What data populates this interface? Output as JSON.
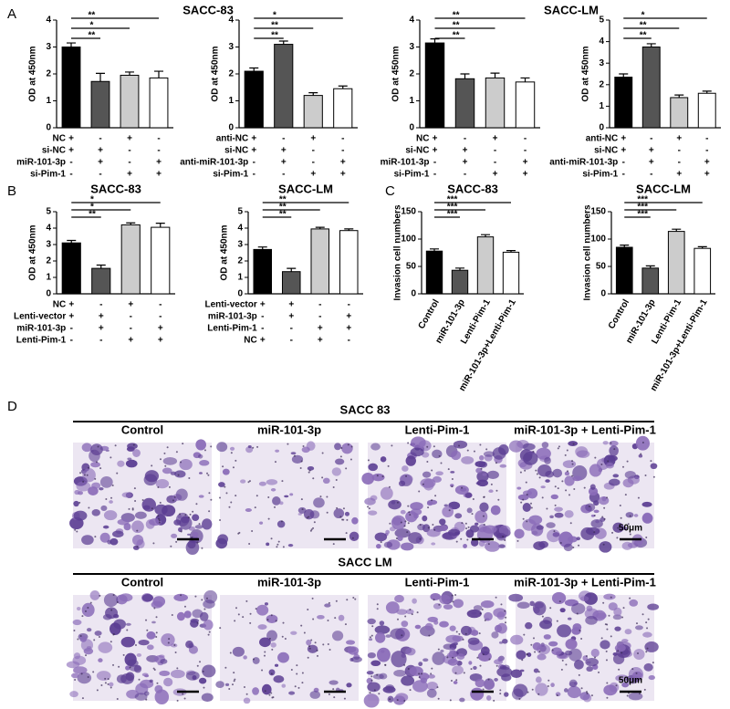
{
  "panel_labels": [
    "A",
    "B",
    "C",
    "D"
  ],
  "chart_data": [
    {
      "type": "bar",
      "title": "SACC-83",
      "ylabel": "OD at 450nm",
      "categories": [
        null,
        null,
        null,
        null
      ],
      "values": [
        3.0,
        1.72,
        1.95,
        1.85
      ],
      "errors": [
        0.15,
        0.3,
        0.12,
        0.25
      ],
      "colors": [
        "#000000",
        "#555555",
        "#cccccc",
        "#ffffff"
      ],
      "ylim": [
        0,
        4
      ],
      "yticks": [
        0,
        1,
        2,
        3,
        4
      ],
      "conditions": [
        {
          "label": "NC",
          "marks": [
            "+",
            "-",
            "+",
            "-"
          ]
        },
        {
          "label": "si-NC",
          "marks": [
            "+",
            "+",
            "-",
            "-"
          ]
        },
        {
          "label": "miR-101-3p",
          "marks": [
            "-",
            "+",
            "-",
            "+"
          ]
        },
        {
          "label": "si-Pim-1",
          "marks": [
            "-",
            "-",
            "+",
            "+"
          ]
        }
      ],
      "significance": [
        {
          "pair": [
            0,
            1
          ],
          "label": "**"
        },
        {
          "pair": [
            0,
            2
          ],
          "label": "*"
        },
        {
          "pair": [
            0,
            3
          ],
          "label": "**"
        }
      ]
    },
    {
      "type": "bar",
      "ylabel": "OD at 450nm",
      "categories": [
        null,
        null,
        null,
        null
      ],
      "values": [
        2.1,
        3.1,
        1.2,
        1.45
      ],
      "errors": [
        0.12,
        0.12,
        0.1,
        0.1
      ],
      "colors": [
        "#000000",
        "#555555",
        "#cccccc",
        "#ffffff"
      ],
      "ylim": [
        0,
        4
      ],
      "yticks": [
        0,
        1,
        2,
        3,
        4
      ],
      "conditions": [
        {
          "label": "anti-NC",
          "marks": [
            "+",
            "-",
            "+",
            "-"
          ]
        },
        {
          "label": "si-NC",
          "marks": [
            "+",
            "+",
            "-",
            "-"
          ]
        },
        {
          "label": "anti-miR-101-3p",
          "marks": [
            "-",
            "+",
            "-",
            "+"
          ]
        },
        {
          "label": "si-Pim-1",
          "marks": [
            "-",
            "-",
            "+",
            "+"
          ]
        }
      ],
      "significance": [
        {
          "pair": [
            0,
            1
          ],
          "label": "**"
        },
        {
          "pair": [
            0,
            2
          ],
          "label": "**"
        },
        {
          "pair": [
            0,
            3
          ],
          "label": "*"
        }
      ]
    },
    {
      "type": "bar",
      "title": "SACC-LM",
      "ylabel": "OD at 450nm",
      "categories": [
        null,
        null,
        null,
        null
      ],
      "values": [
        3.15,
        1.82,
        1.85,
        1.7
      ],
      "errors": [
        0.15,
        0.18,
        0.18,
        0.15
      ],
      "colors": [
        "#000000",
        "#555555",
        "#cccccc",
        "#ffffff"
      ],
      "ylim": [
        0,
        4
      ],
      "yticks": [
        0,
        1,
        2,
        3,
        4
      ],
      "conditions": [
        {
          "label": "NC",
          "marks": [
            "+",
            "-",
            "+",
            "-"
          ]
        },
        {
          "label": "si-NC",
          "marks": [
            "+",
            "+",
            "-",
            "-"
          ]
        },
        {
          "label": "miR-101-3p",
          "marks": [
            "-",
            "+",
            "-",
            "+"
          ]
        },
        {
          "label": "si-Pim-1",
          "marks": [
            "-",
            "-",
            "+",
            "+"
          ]
        }
      ],
      "significance": [
        {
          "pair": [
            0,
            1
          ],
          "label": "**"
        },
        {
          "pair": [
            0,
            2
          ],
          "label": "**"
        },
        {
          "pair": [
            0,
            3
          ],
          "label": "**"
        }
      ]
    },
    {
      "type": "bar",
      "ylabel": "OD at 450nm",
      "categories": [
        null,
        null,
        null,
        null
      ],
      "values": [
        2.35,
        3.75,
        1.4,
        1.6
      ],
      "errors": [
        0.15,
        0.15,
        0.12,
        0.1
      ],
      "colors": [
        "#000000",
        "#555555",
        "#cccccc",
        "#ffffff"
      ],
      "ylim": [
        0,
        5
      ],
      "yticks": [
        0,
        1,
        2,
        3,
        4,
        5
      ],
      "conditions": [
        {
          "label": "anti-NC",
          "marks": [
            "+",
            "-",
            "+",
            "-"
          ]
        },
        {
          "label": "si-NC",
          "marks": [
            "+",
            "+",
            "-",
            "-"
          ]
        },
        {
          "label": "anti-miR-101-3p",
          "marks": [
            "-",
            "+",
            "-",
            "+"
          ]
        },
        {
          "label": "si-Pim-1",
          "marks": [
            "-",
            "-",
            "+",
            "+"
          ]
        }
      ],
      "significance": [
        {
          "pair": [
            0,
            1
          ],
          "label": "**"
        },
        {
          "pair": [
            0,
            2
          ],
          "label": "**"
        },
        {
          "pair": [
            0,
            3
          ],
          "label": "*"
        }
      ]
    },
    {
      "type": "bar",
      "title": "SACC-83",
      "ylabel": "OD at 450nm",
      "categories": [
        null,
        null,
        null,
        null
      ],
      "values": [
        3.1,
        1.55,
        4.2,
        4.05
      ],
      "errors": [
        0.15,
        0.2,
        0.12,
        0.25
      ],
      "colors": [
        "#000000",
        "#555555",
        "#cccccc",
        "#ffffff"
      ],
      "ylim": [
        0,
        5
      ],
      "yticks": [
        0,
        1,
        2,
        3,
        4,
        5
      ],
      "conditions": [
        {
          "label": "NC",
          "marks": [
            "+",
            "-",
            "+",
            "-"
          ]
        },
        {
          "label": "Lenti-vector",
          "marks": [
            "+",
            "+",
            "-",
            "-"
          ]
        },
        {
          "label": "miR-101-3p",
          "marks": [
            "-",
            "+",
            "-",
            "+"
          ]
        },
        {
          "label": "Lenti-Pim-1",
          "marks": [
            "-",
            "-",
            "+",
            "+"
          ]
        }
      ],
      "significance": [
        {
          "pair": [
            0,
            1
          ],
          "label": "**"
        },
        {
          "pair": [
            0,
            2
          ],
          "label": "*"
        },
        {
          "pair": [
            0,
            3
          ],
          "label": "*"
        }
      ]
    },
    {
      "type": "bar",
      "title": "SACC-LM",
      "ylabel": "OD at 450nm",
      "categories": [
        null,
        null,
        null,
        null
      ],
      "values": [
        2.7,
        1.35,
        3.95,
        3.85
      ],
      "errors": [
        0.15,
        0.2,
        0.1,
        0.1
      ],
      "colors": [
        "#000000",
        "#555555",
        "#cccccc",
        "#ffffff"
      ],
      "ylim": [
        0,
        5
      ],
      "yticks": [
        0,
        1,
        2,
        3,
        4,
        5
      ],
      "conditions": [
        {
          "label": "Lenti-vector",
          "marks": [
            "+",
            "+",
            "-",
            "-"
          ]
        },
        {
          "label": "miR-101-3p",
          "marks": [
            "-",
            "+",
            "-",
            "+"
          ]
        },
        {
          "label": "Lenti-Pim-1",
          "marks": [
            "-",
            "-",
            "+",
            "+"
          ]
        },
        {
          "label": "NC",
          "marks": [
            "+",
            "-",
            "+",
            "-"
          ]
        }
      ],
      "significance": [
        {
          "pair": [
            0,
            1
          ],
          "label": "**"
        },
        {
          "pair": [
            0,
            2
          ],
          "label": "**"
        },
        {
          "pair": [
            0,
            3
          ],
          "label": "**"
        }
      ]
    },
    {
      "type": "bar",
      "title": "SACC-83",
      "ylabel": "Invasion cell numbers",
      "categories": [
        "Control",
        "miR-101-3p",
        "Lenti-Pim-1",
        "miR-101-3p+Lenti-Pim-1"
      ],
      "values": [
        78,
        43,
        104,
        76
      ],
      "errors": [
        4,
        4,
        4,
        3
      ],
      "colors": [
        "#000000",
        "#555555",
        "#cccccc",
        "#ffffff"
      ],
      "ylim": [
        0,
        150
      ],
      "yticks": [
        0,
        50,
        100,
        150
      ],
      "significance": [
        {
          "pair": [
            0,
            1
          ],
          "label": "***"
        },
        {
          "pair": [
            0,
            2
          ],
          "label": "***"
        },
        {
          "pair": [
            0,
            3
          ],
          "label": "***"
        }
      ]
    },
    {
      "type": "bar",
      "title": "SACC-LM",
      "ylabel": "Invasion cell numbers",
      "categories": [
        "Control",
        "miR-101-3p",
        "Lenti-Pim-1",
        "miR-101-3p+Lenti-Pim-1"
      ],
      "values": [
        85,
        47,
        114,
        83
      ],
      "errors": [
        4,
        4,
        4,
        3
      ],
      "colors": [
        "#000000",
        "#555555",
        "#cccccc",
        "#ffffff"
      ],
      "ylim": [
        0,
        150
      ],
      "yticks": [
        0,
        50,
        100,
        150
      ],
      "significance": [
        {
          "pair": [
            0,
            1
          ],
          "label": "***"
        },
        {
          "pair": [
            0,
            2
          ],
          "label": "***"
        },
        {
          "pair": [
            0,
            3
          ],
          "label": "***"
        }
      ]
    }
  ],
  "micrographs": [
    {
      "title": "SACC 83",
      "columns": [
        "Control",
        "miR-101-3p",
        "Lenti-Pim-1",
        "miR-101-3p + Lenti-Pim-1"
      ],
      "scale_label": "50μm"
    },
    {
      "title": "SACC LM",
      "columns": [
        "Control",
        "miR-101-3p",
        "Lenti-Pim-1",
        "miR-101-3p + Lenti-Pim-1"
      ],
      "scale_label": "50μm"
    }
  ]
}
